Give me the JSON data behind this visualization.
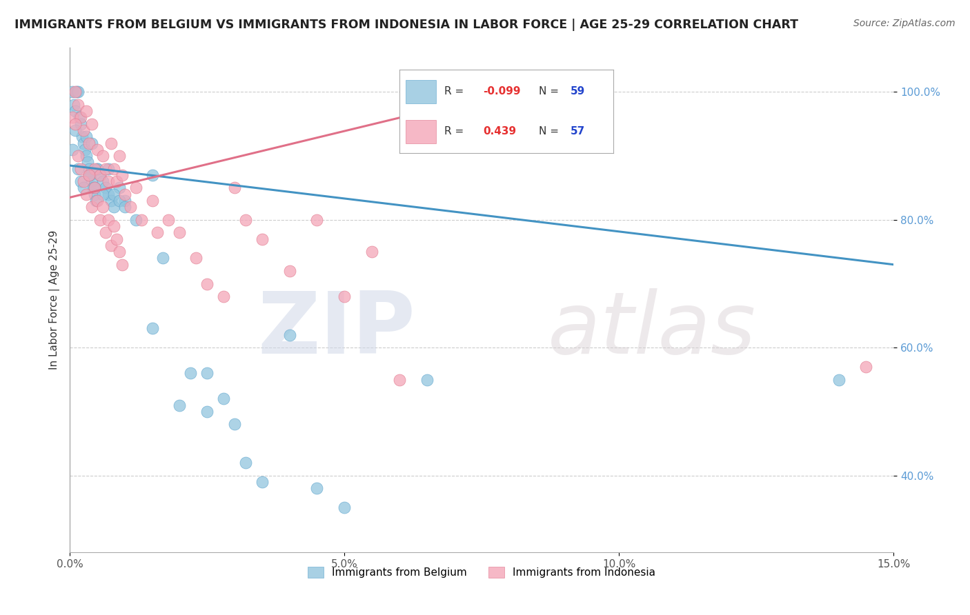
{
  "title": "IMMIGRANTS FROM BELGIUM VS IMMIGRANTS FROM INDONESIA IN LABOR FORCE | AGE 25-29 CORRELATION CHART",
  "source": "Source: ZipAtlas.com",
  "xlim": [
    0.0,
    15.0
  ],
  "ylim": [
    28.0,
    107.0
  ],
  "ylabel": "In Labor Force | Age 25-29",
  "belgium_color": "#92c5de",
  "belgium_edge": "#5ba3cc",
  "indonesia_color": "#f4a6b8",
  "indonesia_edge": "#e0748a",
  "belgium_line_color": "#4393c3",
  "indonesia_line_color": "#e07088",
  "belgium_R": -0.099,
  "belgium_N": 59,
  "indonesia_R": 0.439,
  "indonesia_N": 57,
  "legend_belgium": "Immigrants from Belgium",
  "legend_indonesia": "Immigrants from Indonesia",
  "watermark_zip": "ZIP",
  "watermark_atlas": "atlas",
  "background_color": "#ffffff",
  "grid_color": "#cccccc",
  "ytick_color": "#5b9bd5",
  "xtick_color": "#555555",
  "belgium_x": [
    0.05,
    0.08,
    0.1,
    0.12,
    0.15,
    0.18,
    0.2,
    0.22,
    0.25,
    0.28,
    0.3,
    0.32,
    0.35,
    0.38,
    0.4,
    0.42,
    0.45,
    0.48,
    0.5,
    0.55,
    0.6,
    0.65,
    0.7,
    0.75,
    0.8,
    0.9,
    1.0,
    1.2,
    1.5,
    1.7,
    2.0,
    2.2,
    2.5,
    2.8,
    3.0,
    3.2,
    3.5,
    4.0,
    4.5,
    5.0,
    6.5,
    14.0,
    0.05,
    0.1,
    0.15,
    0.2,
    0.25,
    0.3,
    0.35,
    0.4,
    0.45,
    0.5,
    0.6,
    0.7,
    0.8,
    0.9,
    1.0,
    1.5,
    2.5
  ],
  "belgium_y": [
    100,
    98,
    97,
    100,
    100,
    96,
    95,
    93,
    92,
    91,
    90,
    89,
    88,
    87,
    86,
    85,
    84,
    83,
    88,
    87,
    86,
    85,
    84,
    83,
    82,
    85,
    83,
    80,
    87,
    74,
    51,
    56,
    50,
    52,
    48,
    42,
    39,
    62,
    38,
    35,
    55,
    55,
    91,
    94,
    88,
    86,
    85,
    93,
    87,
    92,
    85,
    88,
    84,
    88,
    84,
    83,
    82,
    63,
    56
  ],
  "indonesia_x": [
    0.05,
    0.1,
    0.15,
    0.2,
    0.25,
    0.3,
    0.35,
    0.4,
    0.45,
    0.5,
    0.55,
    0.6,
    0.65,
    0.7,
    0.75,
    0.8,
    0.85,
    0.9,
    0.95,
    1.0,
    1.1,
    1.2,
    1.3,
    1.5,
    1.6,
    1.8,
    2.0,
    2.3,
    2.5,
    2.8,
    3.0,
    3.2,
    3.5,
    4.0,
    4.5,
    5.0,
    5.5,
    6.0,
    0.1,
    0.15,
    0.2,
    0.25,
    0.3,
    0.35,
    0.4,
    0.45,
    0.5,
    0.55,
    0.6,
    0.65,
    0.7,
    0.75,
    0.8,
    0.85,
    0.9,
    0.95,
    14.5
  ],
  "indonesia_y": [
    96,
    100,
    98,
    96,
    94,
    97,
    92,
    95,
    88,
    91,
    87,
    90,
    88,
    86,
    92,
    88,
    86,
    90,
    87,
    84,
    82,
    85,
    80,
    83,
    78,
    80,
    78,
    74,
    70,
    68,
    85,
    80,
    77,
    72,
    80,
    68,
    75,
    55,
    95,
    90,
    88,
    86,
    84,
    87,
    82,
    85,
    83,
    80,
    82,
    78,
    80,
    76,
    79,
    77,
    75,
    73,
    57
  ],
  "bel_line_x0": 0.0,
  "bel_line_x1": 15.0,
  "bel_line_y0": 88.5,
  "bel_line_y1": 73.0,
  "ind_line_x0": 0.0,
  "ind_line_x1": 6.5,
  "ind_line_y0": 83.5,
  "ind_line_y1": 97.0
}
